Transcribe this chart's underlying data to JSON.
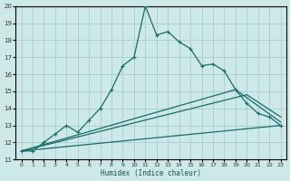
{
  "xlabel": "Humidex (Indice chaleur)",
  "xlim": [
    -0.5,
    23.5
  ],
  "ylim": [
    11,
    20
  ],
  "xticks": [
    0,
    1,
    2,
    3,
    4,
    5,
    6,
    7,
    8,
    9,
    10,
    11,
    12,
    13,
    14,
    15,
    16,
    17,
    18,
    19,
    20,
    21,
    22,
    23
  ],
  "yticks": [
    11,
    12,
    13,
    14,
    15,
    16,
    17,
    18,
    19,
    20
  ],
  "background_color": "#cce8e8",
  "grid_color": "#aacccc",
  "line_color": "#1a6b6b",
  "line1_x": [
    0,
    1,
    2,
    3,
    4,
    5,
    6,
    7,
    8,
    9,
    10,
    11,
    12,
    13,
    14,
    15,
    16,
    17,
    18,
    19,
    20,
    21,
    22,
    23
  ],
  "line1_y": [
    11.5,
    11.5,
    12.0,
    12.5,
    13.0,
    12.6,
    13.3,
    14.0,
    15.1,
    16.5,
    17.0,
    20.0,
    18.3,
    18.5,
    17.9,
    17.5,
    16.5,
    16.6,
    16.2,
    15.1,
    14.3,
    13.7,
    13.5,
    13.0
  ],
  "line2_x": [
    0,
    23
  ],
  "line2_y": [
    11.5,
    13.0
  ],
  "line3_x": [
    0,
    20,
    23
  ],
  "line3_y": [
    11.5,
    14.8,
    13.5
  ],
  "line4_x": [
    0,
    19,
    23
  ],
  "line4_y": [
    11.5,
    15.1,
    13.2
  ]
}
